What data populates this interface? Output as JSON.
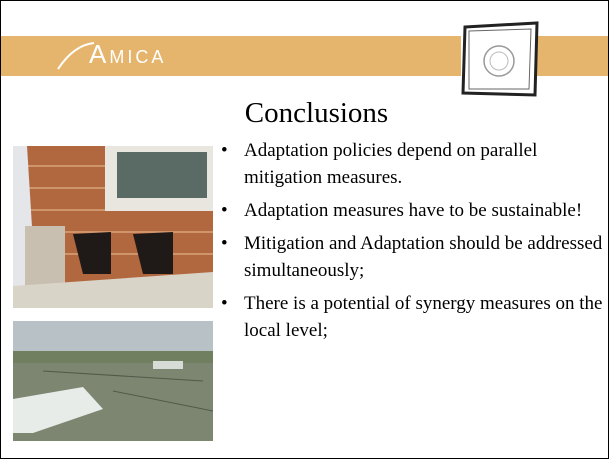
{
  "header": {
    "logo": "Amica"
  },
  "title": "Conclusions",
  "bullets": [
    "Adaptation policies depend on parallel mitigation measures.",
    "Adaptation measures have to be sustainable!",
    "Mitigation and Adaptation should be addressed simultaneously;",
    "There is a potential of synergy measures on the local level;"
  ]
}
